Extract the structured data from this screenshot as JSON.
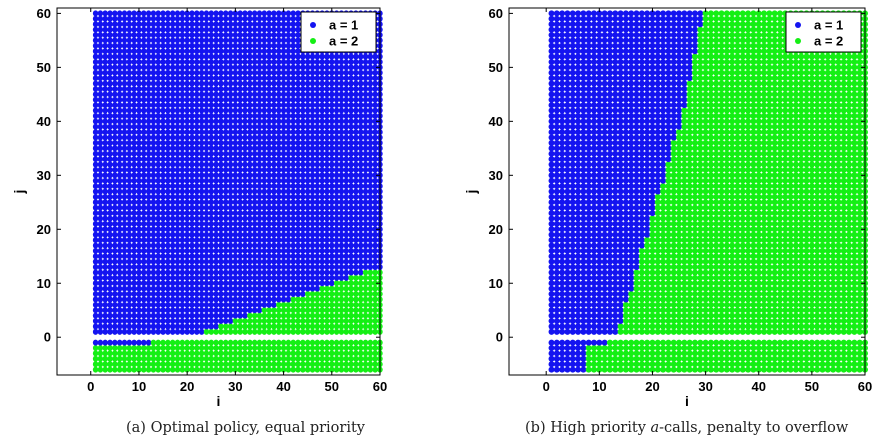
{
  "colors": {
    "a1": "#1414f0",
    "a2": "#14ef14"
  },
  "chart_data": [
    {
      "type": "scatter",
      "caption_parts": [
        "(a) Optimal policy, equal priority"
      ],
      "xlabel": "i",
      "ylabel": "j",
      "xlim": [
        -7,
        60
      ],
      "ylim": [
        -7,
        61
      ],
      "xticks": [
        0,
        10,
        20,
        30,
        40,
        50,
        60
      ],
      "yticks": [
        0,
        10,
        20,
        30,
        40,
        50,
        60
      ],
      "grid": false,
      "legend_position": "top-right",
      "series": [
        {
          "name": "a = 1",
          "rule": "states (i,j), i=1..60, j=-6..60, not assigned a = 2"
        },
        {
          "name": "a = 2",
          "rule": "j = -1 and i > 12, or j <= -2, or 1 <= j <= threshold(i)"
        }
      ],
      "row_minus1_boundary_i": 12,
      "threshold_curve": {
        "i": [
          24,
          27,
          30,
          33,
          36,
          39,
          42,
          45,
          48,
          51,
          54,
          57,
          60
        ],
        "j_max": [
          1,
          2,
          3,
          4,
          5,
          6,
          7,
          8,
          9,
          10,
          11,
          12,
          12
        ]
      }
    },
    {
      "type": "scatter",
      "caption_parts": [
        "(b) High priority ",
        "a",
        "-calls, penalty to overflow"
      ],
      "xlabel": "i",
      "ylabel": "j",
      "xlim": [
        -7,
        60
      ],
      "ylim": [
        -7,
        61
      ],
      "xticks": [
        0,
        10,
        20,
        30,
        40,
        50,
        60
      ],
      "yticks": [
        0,
        10,
        20,
        30,
        40,
        50,
        60
      ],
      "grid": false,
      "legend_position": "top-right",
      "series": [
        {
          "name": "a = 1",
          "rule": "i <= boundary(j)"
        },
        {
          "name": "a = 2",
          "rule": "i > boundary(j)"
        }
      ],
      "boundary_curve": {
        "j": [
          -6,
          -2,
          -1,
          1,
          5,
          10,
          15,
          20,
          25,
          30,
          35,
          40,
          45,
          50,
          55,
          60
        ],
        "i_max": [
          7,
          7,
          11,
          13,
          14,
          16,
          17,
          19,
          20,
          22,
          23,
          25,
          26,
          27,
          28,
          29
        ]
      }
    }
  ]
}
